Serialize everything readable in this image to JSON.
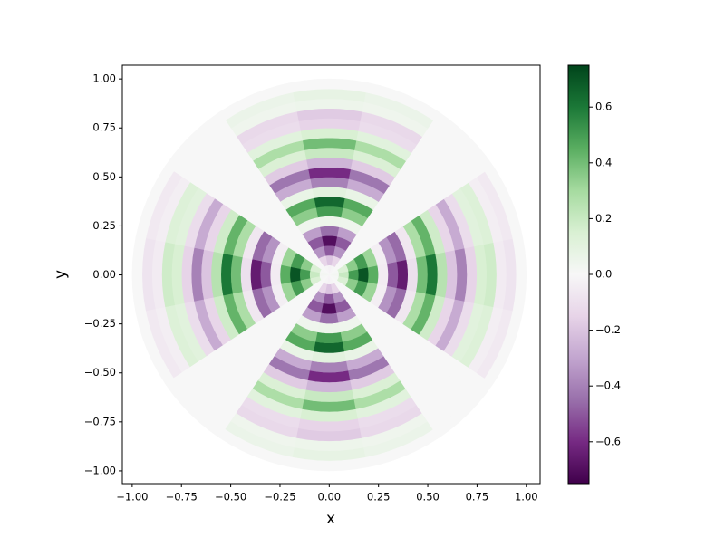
{
  "chart_data": {
    "type": "polar_heatmap",
    "xlabel": "x",
    "ylabel": "y",
    "xlim": [
      -1.05,
      1.07
    ],
    "ylim": [
      -1.065,
      1.07
    ],
    "xticks": [
      {
        "value": -1,
        "label": "−1.00"
      },
      {
        "value": -0.75,
        "label": "−0.75"
      },
      {
        "value": -0.5,
        "label": "−0.50"
      },
      {
        "value": -0.25,
        "label": "−0.25"
      },
      {
        "value": 0,
        "label": "0.00"
      },
      {
        "value": 0.25,
        "label": "0.25"
      },
      {
        "value": 0.5,
        "label": "0.50"
      },
      {
        "value": 0.75,
        "label": "0.75"
      },
      {
        "value": 1,
        "label": "1.00"
      }
    ],
    "yticks": [
      {
        "value": -1,
        "label": "−1.00"
      },
      {
        "value": -0.75,
        "label": "−0.75"
      },
      {
        "value": -0.5,
        "label": "−0.50"
      },
      {
        "value": -0.25,
        "label": "−0.25"
      },
      {
        "value": 0,
        "label": "0.00"
      },
      {
        "value": 0.25,
        "label": "0.25"
      },
      {
        "value": 0.5,
        "label": "0.50"
      },
      {
        "value": 0.75,
        "label": "0.75"
      },
      {
        "value": 1,
        "label": "1.00"
      }
    ],
    "clim": [
      -0.75,
      0.75
    ],
    "cticks": [
      {
        "value": -0.6,
        "label": "−0.6"
      },
      {
        "value": -0.4,
        "label": "−0.4"
      },
      {
        "value": -0.2,
        "label": "−0.2"
      },
      {
        "value": 0,
        "label": "0.0"
      },
      {
        "value": 0.2,
        "label": "0.2"
      },
      {
        "value": 0.4,
        "label": "0.4"
      },
      {
        "value": 0.6,
        "label": "0.6"
      }
    ],
    "colormap": [
      "#40004b",
      "#762a83",
      "#9970ab",
      "#c2a5cf",
      "#e7d4e8",
      "#f7f7f7",
      "#d9f0d3",
      "#a6dba0",
      "#5aae61",
      "#1b7837",
      "#00441b"
    ],
    "r": [
      0.025,
      0.075,
      0.125,
      0.175,
      0.225,
      0.275,
      0.325,
      0.375,
      0.425,
      0.475,
      0.525,
      0.575,
      0.625,
      0.675,
      0.725,
      0.775,
      0.825,
      0.875,
      0.925,
      0.975
    ],
    "theta": [
      0,
      22.5,
      45,
      67.5,
      90,
      112.5,
      135,
      157.5,
      180,
      202.5,
      225,
      247.5,
      270,
      292.5,
      315,
      337.5
    ],
    "values": [
      [
        0.02,
        0.01,
        0,
        -0.01,
        -0.02,
        -0.01,
        0,
        0.01,
        0.02,
        0.01,
        0,
        -0.01,
        -0.02,
        -0.01,
        0,
        0.01
      ],
      [
        0.2,
        0.14,
        0,
        -0.14,
        -0.2,
        -0.14,
        0,
        0.14,
        0.2,
        0.14,
        0,
        -0.14,
        -0.2,
        -0.14,
        0,
        0.14
      ],
      [
        0.5,
        0.35,
        0,
        -0.35,
        -0.5,
        -0.35,
        0,
        0.35,
        0.5,
        0.35,
        0,
        -0.35,
        -0.5,
        -0.35,
        0,
        0.35
      ],
      [
        0.7,
        0.5,
        0,
        -0.5,
        -0.7,
        -0.5,
        0,
        0.5,
        0.7,
        0.5,
        0,
        -0.5,
        -0.7,
        -0.5,
        0,
        0.5
      ],
      [
        0.45,
        0.32,
        0,
        -0.32,
        -0.45,
        -0.32,
        0,
        0.32,
        0.45,
        0.32,
        0,
        -0.32,
        -0.45,
        -0.32,
        0,
        0.32
      ],
      [
        -0.05,
        -0.04,
        0,
        0.04,
        0.05,
        0.04,
        0,
        -0.04,
        -0.05,
        -0.04,
        0,
        0.04,
        0.05,
        0.04,
        0,
        -0.04
      ],
      [
        -0.5,
        -0.35,
        0,
        0.35,
        0.5,
        0.35,
        0,
        -0.35,
        -0.5,
        -0.35,
        0,
        0.35,
        0.5,
        0.35,
        0,
        -0.35
      ],
      [
        -0.65,
        -0.46,
        0,
        0.46,
        0.65,
        0.46,
        0,
        -0.46,
        -0.65,
        -0.46,
        0,
        0.46,
        0.65,
        0.46,
        0,
        -0.46
      ],
      [
        -0.1,
        -0.07,
        0,
        0.07,
        0.1,
        0.07,
        0,
        -0.07,
        -0.1,
        -0.07,
        0,
        0.07,
        0.1,
        0.07,
        0,
        -0.07
      ],
      [
        0.4,
        0.28,
        0,
        -0.28,
        -0.4,
        -0.28,
        0,
        0.28,
        0.4,
        0.28,
        0,
        -0.28,
        -0.4,
        -0.28,
        0,
        0.28
      ],
      [
        0.6,
        0.43,
        0,
        -0.43,
        -0.6,
        -0.43,
        0,
        0.43,
        0.6,
        0.43,
        0,
        -0.43,
        -0.6,
        -0.43,
        0,
        0.43
      ],
      [
        0.25,
        0.18,
        0,
        -0.18,
        -0.25,
        -0.18,
        0,
        0.18,
        0.25,
        0.18,
        0,
        -0.18,
        -0.25,
        -0.18,
        0,
        0.18
      ],
      [
        -0.2,
        -0.14,
        0,
        0.14,
        0.2,
        0.14,
        0,
        -0.14,
        -0.2,
        -0.14,
        0,
        0.14,
        0.2,
        0.14,
        0,
        -0.14
      ],
      [
        -0.4,
        -0.28,
        0,
        0.28,
        0.4,
        0.28,
        0,
        -0.28,
        -0.4,
        -0.28,
        0,
        0.28,
        0.4,
        0.28,
        0,
        -0.28
      ],
      [
        -0.15,
        -0.11,
        0,
        0.11,
        0.15,
        0.11,
        0,
        -0.11,
        -0.15,
        -0.11,
        0,
        0.11,
        0.15,
        0.11,
        0,
        -0.11
      ],
      [
        0.15,
        0.11,
        0,
        -0.11,
        -0.15,
        -0.11,
        0,
        0.11,
        0.15,
        0.11,
        0,
        -0.11,
        -0.15,
        -0.11,
        0,
        0.11
      ],
      [
        0.18,
        0.13,
        0,
        -0.13,
        -0.18,
        -0.13,
        0,
        0.13,
        0.18,
        0.13,
        0,
        -0.13,
        -0.18,
        -0.13,
        0,
        0.13
      ],
      [
        -0.05,
        -0.04,
        0,
        0.04,
        0.05,
        0.04,
        0,
        -0.04,
        -0.05,
        -0.04,
        0,
        0.04,
        0.05,
        0.04,
        0,
        -0.04
      ],
      [
        -0.08,
        -0.06,
        0,
        0.06,
        0.08,
        0.06,
        0,
        -0.06,
        -0.08,
        -0.06,
        0,
        0.06,
        0.08,
        0.06,
        0,
        -0.06
      ],
      [
        0,
        0,
        0,
        0,
        0,
        0,
        0,
        0,
        0,
        0,
        0,
        0,
        0,
        0,
        0,
        0
      ]
    ]
  }
}
